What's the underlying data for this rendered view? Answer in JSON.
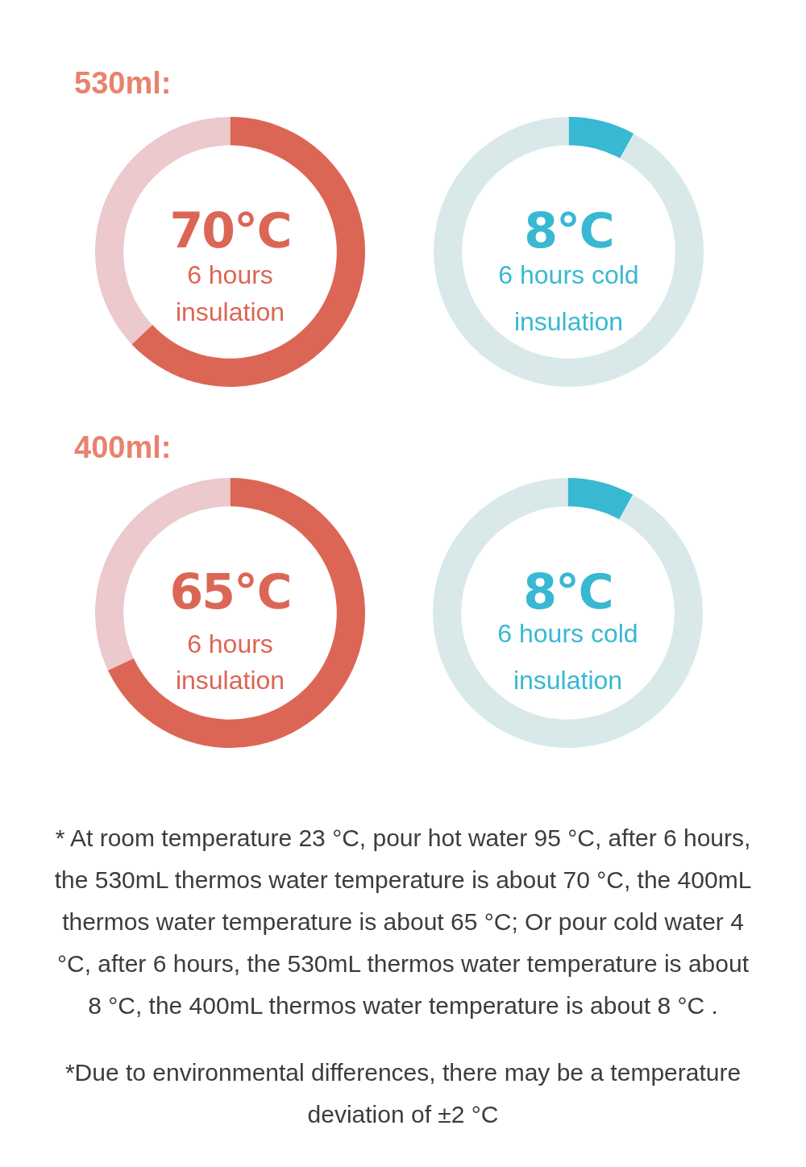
{
  "chart_data": [
    {
      "type": "donut",
      "title": "530ml:",
      "categories": [
        null,
        null
      ],
      "values": [
        63,
        37
      ],
      "colors": [
        "#dc6655",
        "#ebc9cc"
      ],
      "annotations": [
        "70℃",
        "6 hours insulation"
      ]
    },
    {
      "type": "donut",
      "categories": [
        null,
        null
      ],
      "values": [
        8,
        92
      ],
      "colors": [
        "#38b8d3",
        "#d9e9e9"
      ],
      "annotations": [
        "8℃",
        "6 hours cold insulation"
      ]
    },
    {
      "type": "donut",
      "title": "400ml:",
      "categories": [
        null,
        null
      ],
      "values": [
        68,
        32
      ],
      "colors": [
        "#dc6655",
        "#ebc9cc"
      ],
      "annotations": [
        "65℃",
        "6 hours insulation"
      ]
    },
    {
      "type": "donut",
      "categories": [
        null,
        null
      ],
      "values": [
        8,
        92
      ],
      "colors": [
        "#38b8d3",
        "#d9e9e9"
      ],
      "annotations": [
        "8℃",
        "6 hours cold insulation"
      ]
    },
    {
      "type": "other",
      "annotations": [
        "* At room temperature 23 °C, pour hot water 95 °C, after 6 hours, the 530mL thermos water temperature is about 70 °C, the 400mL thermos water temperature is about 65 °C; Or pour cold water 4 °C, after 6 hours, the 530mL thermos water temperature is about 8 °C, the 400mL thermos water temperature is about 8 °C .",
        "*Due to environmental differences, there may be a temperature deviation of ±2 °C"
      ]
    }
  ]
}
